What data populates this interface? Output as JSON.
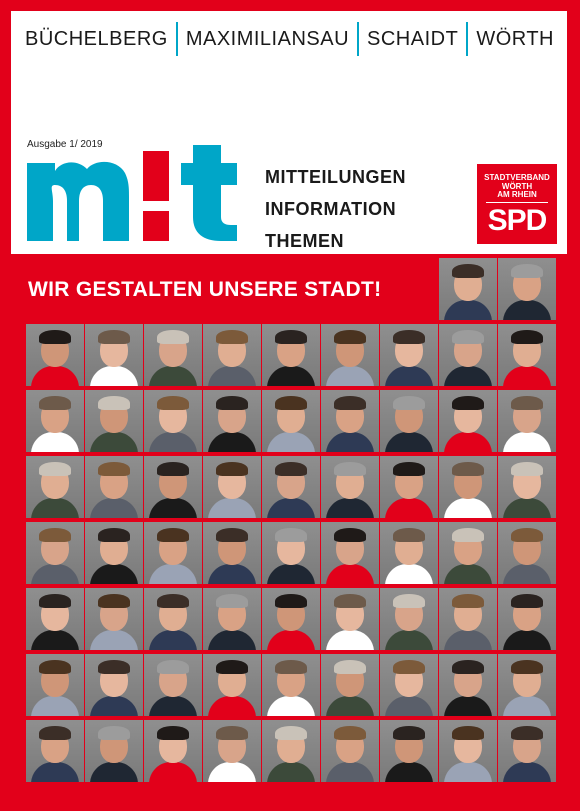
{
  "header": {
    "towns": [
      "BÜCHELBERG",
      "MAXIMILIANSAU",
      "SCHAIDT",
      "WÖRTH"
    ],
    "issue": "Ausgabe 1/ 2019",
    "logo_text": "mit",
    "subtitles": [
      "MITTEILUNGEN",
      "INFORMATION",
      "THEMEN"
    ]
  },
  "badge": {
    "small_lines": [
      "STADTVERBAND",
      "WÖRTH",
      "AM RHEIN"
    ],
    "party": "SPD"
  },
  "headline": "WIR GESTALTEN UNSERE STADT!",
  "colors": {
    "brand_red": "#e2001a",
    "logo_cyan": "#00a6c8",
    "white": "#ffffff"
  },
  "portrait_count": 65
}
